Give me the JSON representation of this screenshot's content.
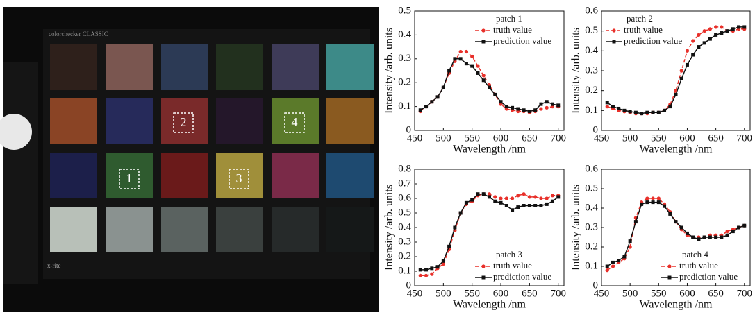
{
  "photo": {
    "brand": "colorchecker CLASSIC",
    "maker": "x-rite",
    "patch_labels": [
      "1",
      "2",
      "3",
      "4"
    ]
  },
  "chart_data": [
    {
      "type": "line",
      "legend_title": "patch 1",
      "legend": "upper right",
      "x_label": "Wavelength /nm",
      "y_label": "Intensity /arb. units",
      "x": [
        460,
        470,
        480,
        490,
        500,
        510,
        520,
        530,
        540,
        550,
        560,
        570,
        580,
        590,
        600,
        610,
        620,
        630,
        640,
        650,
        660,
        670,
        680,
        690,
        700
      ],
      "xlim": [
        450,
        710
      ],
      "xticks": [
        450,
        500,
        550,
        600,
        650,
        700
      ],
      "ylim": [
        0,
        0.5
      ],
      "yticks": [
        0,
        0.1,
        0.2,
        0.3,
        0.4,
        0.5
      ],
      "series": [
        {
          "name": "truth value",
          "color": "#e8302a",
          "linestyle": "dashed",
          "marker": "circle",
          "values": [
            0.08,
            0.1,
            0.12,
            0.14,
            0.18,
            0.24,
            0.29,
            0.33,
            0.33,
            0.31,
            0.27,
            0.23,
            0.19,
            0.15,
            0.11,
            0.09,
            0.085,
            0.08,
            0.08,
            0.075,
            0.08,
            0.09,
            0.095,
            0.1,
            0.1
          ]
        },
        {
          "name": "prediction value",
          "color": "#111111",
          "linestyle": "solid",
          "marker": "square",
          "values": [
            0.085,
            0.1,
            0.12,
            0.14,
            0.18,
            0.25,
            0.3,
            0.3,
            0.28,
            0.27,
            0.24,
            0.21,
            0.18,
            0.15,
            0.12,
            0.1,
            0.095,
            0.09,
            0.085,
            0.08,
            0.085,
            0.11,
            0.12,
            0.11,
            0.105
          ]
        }
      ]
    },
    {
      "type": "line",
      "legend_title": "patch 2",
      "legend": "upper left",
      "x_label": "Wavelength /nm",
      "y_label": "Intensity /arb. units",
      "x": [
        460,
        470,
        480,
        490,
        500,
        510,
        520,
        530,
        540,
        550,
        560,
        570,
        580,
        590,
        600,
        610,
        620,
        630,
        640,
        650,
        660,
        670,
        680,
        690,
        700
      ],
      "xlim": [
        450,
        710
      ],
      "xticks": [
        450,
        500,
        550,
        600,
        650,
        700
      ],
      "ylim": [
        0,
        0.6
      ],
      "yticks": [
        0,
        0.1,
        0.2,
        0.3,
        0.4,
        0.5,
        0.6
      ],
      "series": [
        {
          "name": "truth value",
          "color": "#e8302a",
          "linestyle": "dashed",
          "marker": "circle",
          "values": [
            0.12,
            0.11,
            0.1,
            0.095,
            0.09,
            0.085,
            0.085,
            0.085,
            0.09,
            0.09,
            0.1,
            0.13,
            0.2,
            0.3,
            0.4,
            0.45,
            0.48,
            0.5,
            0.51,
            0.52,
            0.52,
            0.5,
            0.5,
            0.51,
            0.51
          ]
        },
        {
          "name": "prediction value",
          "color": "#111111",
          "linestyle": "solid",
          "marker": "square",
          "values": [
            0.14,
            0.12,
            0.11,
            0.1,
            0.095,
            0.09,
            0.085,
            0.09,
            0.09,
            0.09,
            0.1,
            0.12,
            0.18,
            0.26,
            0.33,
            0.38,
            0.42,
            0.44,
            0.46,
            0.48,
            0.49,
            0.5,
            0.51,
            0.52,
            0.52
          ]
        }
      ]
    },
    {
      "type": "line",
      "legend_title": "patch 3",
      "legend": "lower right",
      "x_label": "Wavelength /nm",
      "y_label": "Intensity /arb. units",
      "x": [
        460,
        470,
        480,
        490,
        500,
        510,
        520,
        530,
        540,
        550,
        560,
        570,
        580,
        590,
        600,
        610,
        620,
        630,
        640,
        650,
        660,
        670,
        680,
        690,
        700
      ],
      "xlim": [
        450,
        710
      ],
      "xticks": [
        450,
        500,
        550,
        600,
        650,
        700
      ],
      "ylim": [
        0,
        0.8
      ],
      "yticks": [
        0,
        0.1,
        0.2,
        0.3,
        0.4,
        0.5,
        0.6,
        0.7,
        0.8
      ],
      "series": [
        {
          "name": "truth value",
          "color": "#e8302a",
          "linestyle": "dashed",
          "marker": "circle",
          "values": [
            0.07,
            0.07,
            0.08,
            0.12,
            0.15,
            0.25,
            0.38,
            0.5,
            0.56,
            0.58,
            0.62,
            0.63,
            0.63,
            0.61,
            0.6,
            0.6,
            0.6,
            0.62,
            0.63,
            0.61,
            0.61,
            0.6,
            0.6,
            0.62,
            0.62
          ]
        },
        {
          "name": "prediction value",
          "color": "#111111",
          "linestyle": "solid",
          "marker": "square",
          "values": [
            0.11,
            0.11,
            0.12,
            0.13,
            0.17,
            0.27,
            0.4,
            0.5,
            0.57,
            0.59,
            0.63,
            0.63,
            0.61,
            0.58,
            0.57,
            0.55,
            0.52,
            0.54,
            0.55,
            0.55,
            0.55,
            0.55,
            0.56,
            0.58,
            0.61
          ]
        }
      ]
    },
    {
      "type": "line",
      "legend_title": "patch 4",
      "legend": "lower right",
      "x_label": "Wavelength /nm",
      "y_label": "Intensity /arb. units",
      "x": [
        460,
        470,
        480,
        490,
        500,
        510,
        520,
        530,
        540,
        550,
        560,
        570,
        580,
        590,
        600,
        610,
        620,
        630,
        640,
        650,
        660,
        670,
        680,
        690,
        700
      ],
      "xlim": [
        450,
        710
      ],
      "xticks": [
        450,
        500,
        550,
        600,
        650,
        700
      ],
      "ylim": [
        0,
        0.6
      ],
      "yticks": [
        0,
        0.1,
        0.2,
        0.3,
        0.4,
        0.5,
        0.6
      ],
      "series": [
        {
          "name": "truth value",
          "color": "#e8302a",
          "linestyle": "dashed",
          "marker": "circle",
          "values": [
            0.08,
            0.1,
            0.12,
            0.14,
            0.2,
            0.35,
            0.43,
            0.45,
            0.45,
            0.45,
            0.42,
            0.38,
            0.33,
            0.29,
            0.26,
            0.25,
            0.25,
            0.25,
            0.26,
            0.26,
            0.26,
            0.28,
            0.29,
            0.3,
            0.31
          ]
        },
        {
          "name": "prediction value",
          "color": "#111111",
          "linestyle": "solid",
          "marker": "square",
          "values": [
            0.1,
            0.12,
            0.13,
            0.15,
            0.23,
            0.33,
            0.42,
            0.43,
            0.43,
            0.43,
            0.41,
            0.37,
            0.33,
            0.3,
            0.27,
            0.25,
            0.24,
            0.25,
            0.25,
            0.25,
            0.25,
            0.26,
            0.28,
            0.3,
            0.31
          ]
        }
      ]
    }
  ]
}
